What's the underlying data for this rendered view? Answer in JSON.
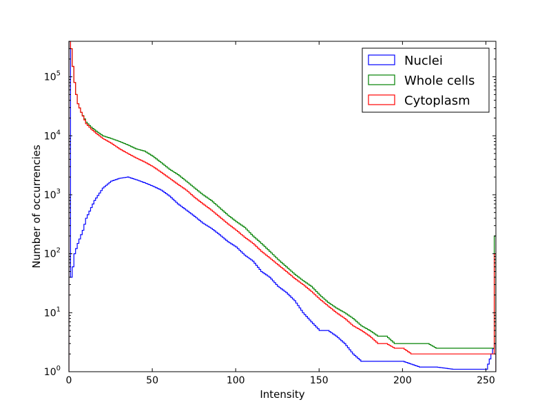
{
  "chart_data": {
    "type": "histogram",
    "title": "",
    "xlabel": "Intensity",
    "ylabel": "Number of occurrencies",
    "xlim": [
      0,
      256
    ],
    "ylim": [
      1,
      400000
    ],
    "yscale": "log",
    "grid": false,
    "legend_position": "top-right",
    "x_ticks": [
      "0",
      "50",
      "100",
      "150",
      "200",
      "250"
    ],
    "y_ticks": [
      {
        "base": "10",
        "exp": "0"
      },
      {
        "base": "10",
        "exp": "1"
      },
      {
        "base": "10",
        "exp": "2"
      },
      {
        "base": "10",
        "exp": "3"
      },
      {
        "base": "10",
        "exp": "4"
      },
      {
        "base": "10",
        "exp": "5"
      }
    ],
    "bin_width": 1,
    "series": [
      {
        "name": "Nuclei",
        "color": "#0000ff",
        "points": [
          [
            0,
            400000
          ],
          [
            1,
            40
          ],
          [
            2,
            60
          ],
          [
            3,
            100
          ],
          [
            5,
            150
          ],
          [
            8,
            250
          ],
          [
            10,
            400
          ],
          [
            15,
            800
          ],
          [
            20,
            1300
          ],
          [
            25,
            1700
          ],
          [
            30,
            1900
          ],
          [
            35,
            2000
          ],
          [
            40,
            1800
          ],
          [
            45,
            1600
          ],
          [
            50,
            1400
          ],
          [
            55,
            1200
          ],
          [
            60,
            950
          ],
          [
            65,
            700
          ],
          [
            70,
            550
          ],
          [
            75,
            430
          ],
          [
            80,
            330
          ],
          [
            85,
            270
          ],
          [
            90,
            210
          ],
          [
            95,
            160
          ],
          [
            100,
            130
          ],
          [
            105,
            95
          ],
          [
            110,
            75
          ],
          [
            115,
            50
          ],
          [
            120,
            40
          ],
          [
            125,
            28
          ],
          [
            130,
            22
          ],
          [
            135,
            16
          ],
          [
            140,
            10
          ],
          [
            145,
            7
          ],
          [
            150,
            5
          ],
          [
            155,
            5
          ],
          [
            160,
            4
          ],
          [
            165,
            3
          ],
          [
            170,
            2
          ],
          [
            175,
            1.5
          ],
          [
            180,
            1.5
          ],
          [
            185,
            1.5
          ],
          [
            190,
            1.5
          ],
          [
            195,
            1.5
          ],
          [
            200,
            1.5
          ],
          [
            210,
            1.2
          ],
          [
            220,
            1.2
          ],
          [
            230,
            1.1
          ],
          [
            240,
            1.1
          ],
          [
            250,
            1.1
          ],
          [
            255,
            3
          ]
        ]
      },
      {
        "name": "Whole cells",
        "color": "#008000",
        "points": [
          [
            0,
            400000
          ],
          [
            1,
            300000
          ],
          [
            2,
            150000
          ],
          [
            3,
            80000
          ],
          [
            4,
            50000
          ],
          [
            5,
            35000
          ],
          [
            7,
            25000
          ],
          [
            10,
            17000
          ],
          [
            13,
            14000
          ],
          [
            16,
            12000
          ],
          [
            20,
            10000
          ],
          [
            25,
            9000
          ],
          [
            30,
            8000
          ],
          [
            35,
            7000
          ],
          [
            40,
            6000
          ],
          [
            45,
            5500
          ],
          [
            50,
            4500
          ],
          [
            55,
            3500
          ],
          [
            60,
            2700
          ],
          [
            65,
            2200
          ],
          [
            70,
            1700
          ],
          [
            75,
            1300
          ],
          [
            80,
            1000
          ],
          [
            85,
            800
          ],
          [
            90,
            600
          ],
          [
            95,
            450
          ],
          [
            100,
            350
          ],
          [
            105,
            280
          ],
          [
            110,
            200
          ],
          [
            115,
            150
          ],
          [
            120,
            110
          ],
          [
            125,
            80
          ],
          [
            130,
            60
          ],
          [
            135,
            45
          ],
          [
            140,
            35
          ],
          [
            145,
            28
          ],
          [
            150,
            20
          ],
          [
            155,
            15
          ],
          [
            160,
            12
          ],
          [
            165,
            10
          ],
          [
            170,
            8
          ],
          [
            175,
            6
          ],
          [
            180,
            5
          ],
          [
            185,
            4
          ],
          [
            190,
            4
          ],
          [
            195,
            3
          ],
          [
            200,
            3
          ],
          [
            205,
            3
          ],
          [
            210,
            3
          ],
          [
            215,
            3
          ],
          [
            220,
            2.5
          ],
          [
            225,
            2.5
          ],
          [
            230,
            2.5
          ],
          [
            235,
            2.5
          ],
          [
            240,
            2.5
          ],
          [
            245,
            2.5
          ],
          [
            250,
            2.5
          ],
          [
            254,
            2.5
          ],
          [
            255,
            200
          ]
        ]
      },
      {
        "name": "Cytoplasm",
        "color": "#ff0000",
        "points": [
          [
            0,
            400000
          ],
          [
            1,
            300000
          ],
          [
            2,
            150000
          ],
          [
            3,
            80000
          ],
          [
            4,
            50000
          ],
          [
            5,
            35000
          ],
          [
            7,
            25000
          ],
          [
            10,
            16000
          ],
          [
            13,
            13000
          ],
          [
            16,
            11000
          ],
          [
            20,
            9000
          ],
          [
            25,
            7500
          ],
          [
            30,
            6000
          ],
          [
            35,
            5000
          ],
          [
            40,
            4200
          ],
          [
            45,
            3600
          ],
          [
            50,
            3000
          ],
          [
            55,
            2400
          ],
          [
            60,
            1900
          ],
          [
            65,
            1500
          ],
          [
            70,
            1200
          ],
          [
            75,
            900
          ],
          [
            80,
            700
          ],
          [
            85,
            550
          ],
          [
            90,
            420
          ],
          [
            95,
            320
          ],
          [
            100,
            250
          ],
          [
            105,
            190
          ],
          [
            110,
            150
          ],
          [
            115,
            110
          ],
          [
            120,
            85
          ],
          [
            125,
            65
          ],
          [
            130,
            50
          ],
          [
            135,
            38
          ],
          [
            140,
            30
          ],
          [
            145,
            23
          ],
          [
            150,
            17
          ],
          [
            155,
            13
          ],
          [
            160,
            10
          ],
          [
            165,
            8
          ],
          [
            170,
            6
          ],
          [
            175,
            5
          ],
          [
            180,
            4
          ],
          [
            185,
            3
          ],
          [
            190,
            3
          ],
          [
            195,
            2.5
          ],
          [
            200,
            2.5
          ],
          [
            205,
            2
          ],
          [
            210,
            2
          ],
          [
            215,
            2
          ],
          [
            220,
            2
          ],
          [
            225,
            2
          ],
          [
            230,
            2
          ],
          [
            235,
            2
          ],
          [
            240,
            2
          ],
          [
            245,
            2
          ],
          [
            250,
            2
          ],
          [
            254,
            2
          ],
          [
            255,
            100
          ]
        ]
      }
    ]
  }
}
